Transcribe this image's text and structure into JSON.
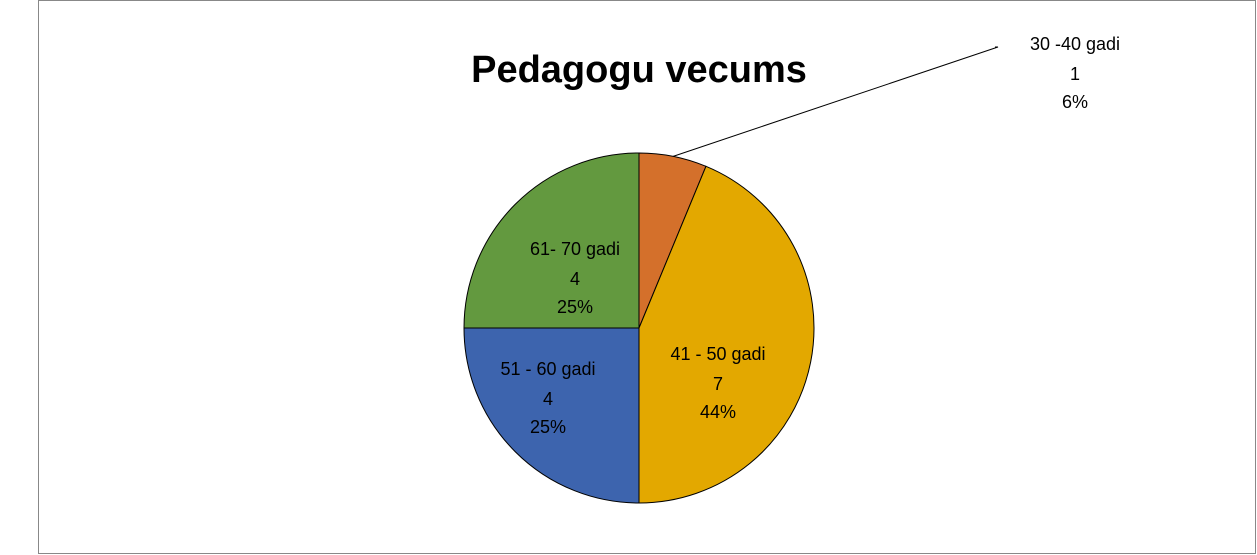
{
  "chart_data": {
    "type": "pie",
    "title": "Pedagogu vecums",
    "categories": [
      "30 -40 gadi",
      "41 - 50 gadi",
      "51 - 60 gadi",
      "61- 70 gadi"
    ],
    "values": [
      1,
      7,
      4,
      4
    ],
    "percent_labels": [
      "6%",
      "44%",
      "25%",
      "25%"
    ],
    "colors": [
      "#d4702b",
      "#e3a800",
      "#3d64ae",
      "#63993f"
    ]
  }
}
